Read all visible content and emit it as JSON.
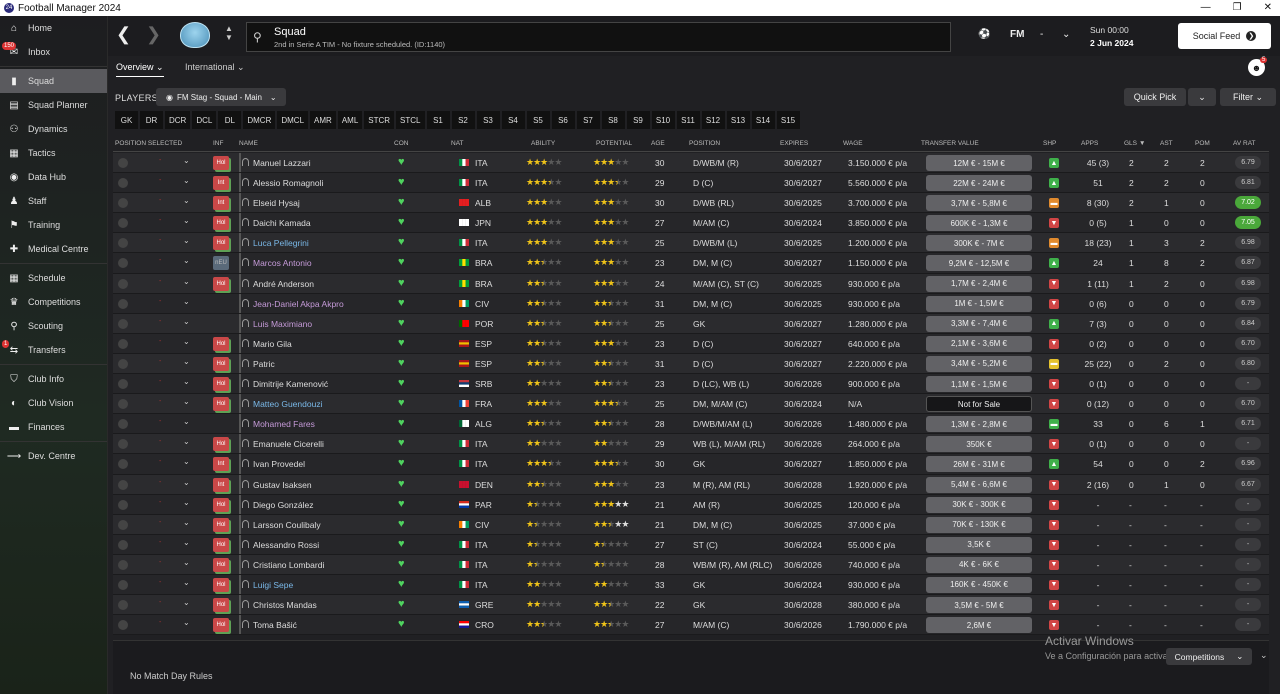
{
  "app": {
    "title": "Football Manager 2024",
    "logo": "24"
  },
  "sidebar": {
    "items": [
      {
        "label": "Home",
        "icon": "⌂",
        "active": false,
        "badge": ""
      },
      {
        "label": "Inbox",
        "icon": "✉",
        "active": false,
        "badge": "150"
      },
      {
        "label": "Squad",
        "icon": "▮",
        "active": true,
        "badge": ""
      },
      {
        "label": "Squad Planner",
        "icon": "▤",
        "active": false,
        "badge": ""
      },
      {
        "label": "Dynamics",
        "icon": "⚇",
        "active": false,
        "badge": ""
      },
      {
        "label": "Tactics",
        "icon": "▦",
        "active": false,
        "badge": ""
      },
      {
        "label": "Data Hub",
        "icon": "◉",
        "active": false,
        "badge": ""
      },
      {
        "label": "Staff",
        "icon": "♟",
        "active": false,
        "badge": ""
      },
      {
        "label": "Training",
        "icon": "⚑",
        "active": false,
        "badge": ""
      },
      {
        "label": "Medical Centre",
        "icon": "✚",
        "active": false,
        "badge": ""
      },
      {
        "label": "Schedule",
        "icon": "▦",
        "active": false,
        "badge": ""
      },
      {
        "label": "Competitions",
        "icon": "♛",
        "active": false,
        "badge": ""
      },
      {
        "label": "Scouting",
        "icon": "⚲",
        "active": false,
        "badge": ""
      },
      {
        "label": "Transfers",
        "icon": "⇆",
        "active": false,
        "badge": "1"
      },
      {
        "label": "Club Info",
        "icon": "⛉",
        "active": false,
        "badge": ""
      },
      {
        "label": "Club Vision",
        "icon": "◐",
        "active": false,
        "badge": ""
      },
      {
        "label": "Finances",
        "icon": "▬",
        "active": false,
        "badge": ""
      },
      {
        "label": "Dev. Centre",
        "icon": "⟶",
        "active": false,
        "badge": ""
      }
    ]
  },
  "header": {
    "page_title": "Squad",
    "subtitle": "2nd in Serie A TIM - No fixture scheduled. (ID:1140)",
    "fm_label": "FM",
    "fm_dash": "-",
    "time": "Sun 00:00",
    "date": "2 Jun 2024",
    "social_feed": "Social Feed",
    "avatar_badge": "5"
  },
  "subtabs": [
    "Overview",
    "International"
  ],
  "players_label": "PLAYERS",
  "view_selector": "FM Stag - Squad - Main",
  "quick_pick": "Quick Pick",
  "filter": "Filter",
  "position_filters": [
    "GK",
    "DR",
    "DCR",
    "DCL",
    "DL",
    "DMCR",
    "DMCL",
    "AMR",
    "AML",
    "STCR",
    "STCL",
    "S1",
    "S2",
    "S3",
    "S4",
    "S5",
    "S6",
    "S7",
    "S8",
    "S9",
    "S10",
    "S11",
    "S12",
    "S13",
    "S14",
    "S15"
  ],
  "columns": {
    "position_selected": "POSITION SELECTED",
    "inf": "INF",
    "name": "NAME",
    "con": "CON",
    "nat": "NAT",
    "ability": "ABILITY",
    "potential": "POTENTIAL",
    "age": "AGE",
    "position": "POSITION",
    "expires": "EXPIRES",
    "wage": "WAGE",
    "transfer_value": "TRANSFER VALUE",
    "shp": "SHP",
    "apps": "APPS",
    "gls": "GLS",
    "ast": "AST",
    "pom": "POM",
    "av_rat": "AV RAT"
  },
  "players": [
    {
      "name": "Manuel Lazzari",
      "style": "",
      "inf": "Hol",
      "nat": "ITA",
      "ab": 3,
      "pot": 3,
      "age": "30",
      "pos": "D/WB/M (R)",
      "exp": "30/6/2027",
      "wage": "3.150.000 € p/a",
      "tv": "12M € - 15M €",
      "shp": "up",
      "apps": "45 (3)",
      "gls": "2",
      "ast": "2",
      "pom": "2",
      "rat": "6.79",
      "hi": false
    },
    {
      "name": "Alessio Romagnoli",
      "style": "",
      "inf": "Int",
      "nat": "ITA",
      "ab": 3.5,
      "pot": 3.5,
      "age": "29",
      "pos": "D (C)",
      "exp": "30/6/2027",
      "wage": "5.560.000 € p/a",
      "tv": "22M € - 24M €",
      "shp": "up",
      "apps": "51",
      "gls": "2",
      "ast": "2",
      "pom": "0",
      "rat": "6.81",
      "hi": false
    },
    {
      "name": "Elseid Hysaj",
      "style": "",
      "inf": "Int",
      "nat": "ALB",
      "ab": 3,
      "pot": 3,
      "age": "30",
      "pos": "D/WB (RL)",
      "exp": "30/6/2025",
      "wage": "3.700.000 € p/a",
      "tv": "3,7M € - 5,8M €",
      "shp": "mid",
      "apps": "8 (30)",
      "gls": "2",
      "ast": "1",
      "pom": "0",
      "rat": "7.02",
      "hi": true
    },
    {
      "name": "Daichi Kamada",
      "style": "",
      "inf": "Hol",
      "nat": "JPN",
      "ab": 3,
      "pot": 3,
      "age": "27",
      "pos": "M/AM (C)",
      "exp": "30/6/2024",
      "wage": "3.850.000 € p/a",
      "tv": "600K € - 1,3M €",
      "shp": "down",
      "apps": "0 (5)",
      "gls": "1",
      "ast": "0",
      "pom": "0",
      "rat": "7.05",
      "hi": true
    },
    {
      "name": "Luca Pellegrini",
      "style": "blue",
      "inf": "Hol",
      "nat": "ITA",
      "ab": 3,
      "pot": 3,
      "age": "25",
      "pos": "D/WB/M (L)",
      "exp": "30/6/2025",
      "wage": "1.200.000 € p/a",
      "tv": "300K € - 7M €",
      "shp": "mid",
      "apps": "18 (23)",
      "gls": "1",
      "ast": "3",
      "pom": "2",
      "rat": "6.98",
      "hi": false
    },
    {
      "name": "Marcos Antonio",
      "style": "purple",
      "inf": "nEU",
      "nat": "BRA",
      "ab": 2.5,
      "pot": 3,
      "age": "23",
      "pos": "DM, M (C)",
      "exp": "30/6/2027",
      "wage": "1.150.000 € p/a",
      "tv": "9,2M € - 12,5M €",
      "shp": "up",
      "apps": "24",
      "gls": "1",
      "ast": "8",
      "pom": "2",
      "rat": "6.87",
      "hi": false
    },
    {
      "name": "André Anderson",
      "style": "",
      "inf": "Hol",
      "nat": "BRA",
      "ab": 2.5,
      "pot": 3,
      "age": "24",
      "pos": "M/AM (C), ST (C)",
      "exp": "30/6/2025",
      "wage": "930.000 € p/a",
      "tv": "1,7M € - 2,4M €",
      "shp": "down",
      "apps": "1 (11)",
      "gls": "1",
      "ast": "2",
      "pom": "0",
      "rat": "6.98",
      "hi": false
    },
    {
      "name": "Jean-Daniel Akpa Akpro",
      "style": "purple",
      "inf": "",
      "nat": "CIV",
      "ab": 2.5,
      "pot": 2.5,
      "age": "31",
      "pos": "DM, M (C)",
      "exp": "30/6/2025",
      "wage": "930.000 € p/a",
      "tv": "1M € - 1,5M €",
      "shp": "down",
      "apps": "0 (6)",
      "gls": "0",
      "ast": "0",
      "pom": "0",
      "rat": "6.79",
      "hi": false
    },
    {
      "name": "Luis Maximiano",
      "style": "purple",
      "inf": "",
      "nat": "POR",
      "ab": 2.5,
      "pot": 2.5,
      "age": "25",
      "pos": "GK",
      "exp": "30/6/2027",
      "wage": "1.280.000 € p/a",
      "tv": "3,3M € - 7,4M €",
      "shp": "up",
      "apps": "7 (3)",
      "gls": "0",
      "ast": "0",
      "pom": "0",
      "rat": "6.84",
      "hi": false
    },
    {
      "name": "Mario Gila",
      "style": "",
      "inf": "Hol",
      "nat": "ESP",
      "ab": 2.5,
      "pot": 3,
      "age": "23",
      "pos": "D (C)",
      "exp": "30/6/2027",
      "wage": "640.000 € p/a",
      "tv": "2,1M € - 3,6M €",
      "shp": "down",
      "apps": "0 (2)",
      "gls": "0",
      "ast": "0",
      "pom": "0",
      "rat": "6.70",
      "hi": false
    },
    {
      "name": "Patric",
      "style": "",
      "inf": "Hol",
      "nat": "ESP",
      "ab": 2.5,
      "pot": 2.5,
      "age": "31",
      "pos": "D (C)",
      "exp": "30/6/2027",
      "wage": "2.220.000 € p/a",
      "tv": "3,4M € - 5,2M €",
      "shp": "yel",
      "apps": "25 (22)",
      "gls": "0",
      "ast": "2",
      "pom": "0",
      "rat": "6.80",
      "hi": false
    },
    {
      "name": "Dimitrije Kamenović",
      "style": "",
      "inf": "Hol",
      "nat": "SRB",
      "ab": 2,
      "pot": 2.5,
      "age": "23",
      "pos": "D (LC), WB (L)",
      "exp": "30/6/2026",
      "wage": "900.000 € p/a",
      "tv": "1,1M € - 1,5M €",
      "shp": "down",
      "apps": "0 (1)",
      "gls": "0",
      "ast": "0",
      "pom": "0",
      "rat": "-",
      "hi": false
    },
    {
      "name": "Matteo Guendouzi",
      "style": "blue",
      "inf": "Hol",
      "nat": "FRA",
      "ab": 3,
      "pot": 3.5,
      "age": "25",
      "pos": "DM, M/AM (C)",
      "exp": "30/6/2024",
      "wage": "N/A",
      "tv": "Not for Sale",
      "shp": "down",
      "apps": "0 (12)",
      "gls": "0",
      "ast": "0",
      "pom": "0",
      "rat": "6.70",
      "hi": false,
      "nfs": true
    },
    {
      "name": "Mohamed Fares",
      "style": "purple",
      "inf": "",
      "nat": "ALG",
      "ab": 2.5,
      "pot": 2.5,
      "age": "28",
      "pos": "D/WB/M/AM (L)",
      "exp": "30/6/2026",
      "wage": "1.480.000 € p/a",
      "tv": "1,3M € - 2,8M €",
      "shp": "gn",
      "apps": "33",
      "gls": "0",
      "ast": "6",
      "pom": "1",
      "rat": "6.71",
      "hi": false
    },
    {
      "name": "Emanuele Cicerelli",
      "style": "",
      "inf": "Hol",
      "nat": "ITA",
      "ab": 2,
      "pot": 2,
      "age": "29",
      "pos": "WB (L), M/AM (RL)",
      "exp": "30/6/2026",
      "wage": "264.000 € p/a",
      "tv": "350K €",
      "shp": "down",
      "apps": "0 (1)",
      "gls": "0",
      "ast": "0",
      "pom": "0",
      "rat": "-",
      "hi": false
    },
    {
      "name": "Ivan Provedel",
      "style": "",
      "inf": "Int",
      "nat": "ITA",
      "ab": 3.5,
      "pot": 3.5,
      "age": "30",
      "pos": "GK",
      "exp": "30/6/2027",
      "wage": "1.850.000 € p/a",
      "tv": "26M € - 31M €",
      "shp": "up",
      "apps": "54",
      "gls": "0",
      "ast": "0",
      "pom": "2",
      "rat": "6.96",
      "hi": false
    },
    {
      "name": "Gustav Isaksen",
      "style": "",
      "inf": "Int",
      "nat": "DEN",
      "ab": 2.5,
      "pot": 3,
      "age": "23",
      "pos": "M (R), AM (RL)",
      "exp": "30/6/2028",
      "wage": "1.920.000 € p/a",
      "tv": "5,4M € - 6,6M €",
      "shp": "down",
      "apps": "2 (16)",
      "gls": "0",
      "ast": "1",
      "pom": "0",
      "rat": "6.67",
      "hi": false
    },
    {
      "name": "Diego González",
      "style": "",
      "inf": "Hol",
      "nat": "PAR",
      "ab": 1.5,
      "pot": 3,
      "potw": true,
      "age": "21",
      "pos": "AM (R)",
      "exp": "30/6/2025",
      "wage": "120.000 € p/a",
      "tv": "30K € - 300K €",
      "shp": "down",
      "apps": "-",
      "gls": "-",
      "ast": "-",
      "pom": "-",
      "rat": "-",
      "hi": false
    },
    {
      "name": "Larsson Coulibaly",
      "style": "",
      "inf": "Hol",
      "nat": "CIV",
      "ab": 1.5,
      "pot": 2.5,
      "potw": true,
      "age": "21",
      "pos": "DM, M (C)",
      "exp": "30/6/2025",
      "wage": "37.000 € p/a",
      "tv": "70K € - 130K €",
      "shp": "down",
      "apps": "-",
      "gls": "-",
      "ast": "-",
      "pom": "-",
      "rat": "-",
      "hi": false
    },
    {
      "name": "Alessandro Rossi",
      "style": "",
      "inf": "Hol",
      "nat": "ITA",
      "ab": 1.5,
      "pot": 1.5,
      "age": "27",
      "pos": "ST (C)",
      "exp": "30/6/2024",
      "wage": "55.000 € p/a",
      "tv": "3,5K €",
      "shp": "down",
      "apps": "-",
      "gls": "-",
      "ast": "-",
      "pom": "-",
      "rat": "-",
      "hi": false
    },
    {
      "name": "Cristiano Lombardi",
      "style": "",
      "inf": "Hol",
      "nat": "ITA",
      "ab": 1.5,
      "pot": 1.5,
      "age": "28",
      "pos": "WB/M (R), AM (RLC)",
      "exp": "30/6/2026",
      "wage": "740.000 € p/a",
      "tv": "4K € - 6K €",
      "shp": "down",
      "apps": "-",
      "gls": "-",
      "ast": "-",
      "pom": "-",
      "rat": "-",
      "hi": false
    },
    {
      "name": "Luigi Sepe",
      "style": "blue",
      "inf": "Hol",
      "nat": "ITA",
      "ab": 2,
      "pot": 2,
      "age": "33",
      "pos": "GK",
      "exp": "30/6/2024",
      "wage": "930.000 € p/a",
      "tv": "160K € - 450K €",
      "shp": "down",
      "apps": "-",
      "gls": "-",
      "ast": "-",
      "pom": "-",
      "rat": "-",
      "hi": false
    },
    {
      "name": "Christos Mandas",
      "style": "",
      "inf": "Hol",
      "nat": "GRE",
      "ab": 2,
      "pot": 2.5,
      "age": "22",
      "pos": "GK",
      "exp": "30/6/2028",
      "wage": "380.000 € p/a",
      "tv": "3,5M € - 5M €",
      "shp": "down",
      "apps": "-",
      "gls": "-",
      "ast": "-",
      "pom": "-",
      "rat": "-",
      "hi": false
    },
    {
      "name": "Toma Bašić",
      "style": "",
      "inf": "Hol",
      "nat": "CRO",
      "ab": 2.5,
      "pot": 2.5,
      "age": "27",
      "pos": "M/AM (C)",
      "exp": "30/6/2026",
      "wage": "1.790.000 € p/a",
      "tv": "2,6M €",
      "shp": "down",
      "apps": "-",
      "gls": "-",
      "ast": "-",
      "pom": "-",
      "rat": "-",
      "hi": false
    }
  ],
  "footer": {
    "no_match_day_rules": "No Match Day Rules",
    "competitions": "Competitions"
  },
  "watermark": {
    "line1": "Activar Windows",
    "line2": "Ve a Configuración para activar Windows."
  },
  "colors": {
    "accent_green": "#4fd35f",
    "star": "#f0c419",
    "inf_red": "#c94848",
    "rating_high": "#4aa83a",
    "shp_up": "#3fb04a",
    "shp_down": "#d04545",
    "shp_mid": "#e08a2e",
    "shp_yel": "#e5c22e"
  }
}
